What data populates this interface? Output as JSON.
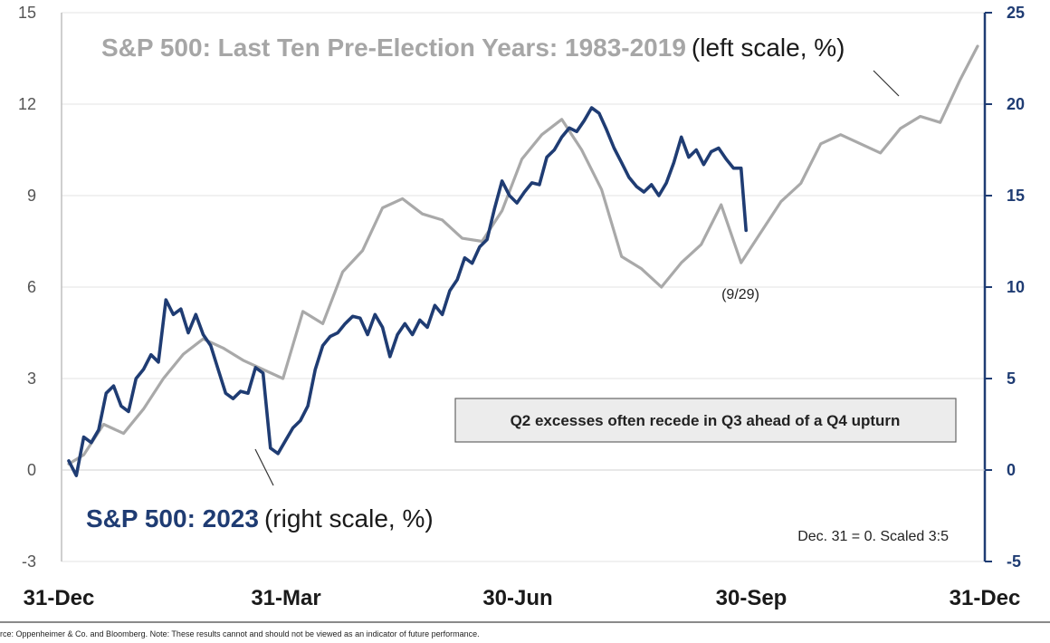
{
  "chart_data": {
    "type": "line",
    "categories": [
      "31-Dec",
      "31-Mar",
      "30-Jun",
      "30-Sep",
      "31-Dec"
    ],
    "x_range": [
      0,
      365
    ],
    "y_left": {
      "ticks": [
        "15",
        "12",
        "9",
        "6",
        "3",
        "0",
        "-3"
      ],
      "range": [
        -3,
        15
      ],
      "unit": "%"
    },
    "y_right": {
      "ticks": [
        "25",
        "20",
        "15",
        "10",
        "5",
        "0",
        "-5"
      ],
      "range": [
        -5,
        25
      ],
      "unit": "%"
    },
    "series": [
      {
        "name": "S&P 500: Last Ten Pre-Election Years: 1983-2019",
        "color": "#a9a9a9",
        "axis": "left",
        "x": [
          0,
          6,
          14,
          22,
          30,
          38,
          46,
          54,
          62,
          70,
          78,
          86,
          94,
          102,
          110,
          118,
          126,
          134,
          142,
          150,
          158,
          166,
          174,
          182,
          190,
          198,
          206,
          214,
          222,
          230,
          238,
          246,
          254,
          262,
          270,
          278,
          286,
          294,
          302,
          310,
          318,
          326,
          334,
          342,
          350,
          358,
          365
        ],
        "values": [
          0.2,
          0.5,
          1.5,
          1.2,
          2.0,
          3.0,
          3.8,
          4.3,
          4.0,
          3.6,
          3.3,
          3.0,
          5.2,
          4.8,
          6.5,
          7.2,
          8.6,
          8.9,
          8.4,
          8.2,
          7.6,
          7.5,
          8.5,
          10.2,
          11.0,
          11.5,
          10.5,
          9.2,
          7.0,
          6.6,
          6.0,
          6.8,
          7.4,
          8.7,
          6.8,
          7.8,
          8.8,
          9.4,
          10.7,
          11.0,
          10.7,
          10.4,
          11.2,
          11.6,
          11.4,
          12.8,
          13.9
        ]
      },
      {
        "name": "S&P 500: 2023",
        "color": "#1f3c73",
        "axis": "right",
        "x": [
          0,
          3,
          6,
          9,
          12,
          15,
          18,
          21,
          24,
          27,
          30,
          33,
          36,
          39,
          42,
          45,
          48,
          51,
          54,
          57,
          60,
          63,
          66,
          69,
          72,
          75,
          78,
          81,
          84,
          87,
          90,
          93,
          96,
          99,
          102,
          105,
          108,
          111,
          114,
          117,
          120,
          123,
          126,
          129,
          132,
          135,
          138,
          141,
          144,
          147,
          150,
          153,
          156,
          159,
          162,
          165,
          168,
          171,
          174,
          177,
          180,
          183,
          186,
          189,
          192,
          195,
          198,
          201,
          204,
          207,
          210,
          213,
          216,
          219,
          222,
          225,
          228,
          231,
          234,
          237,
          240,
          243,
          246,
          249,
          252,
          255,
          258,
          261,
          264,
          267,
          270,
          272
        ],
        "values": [
          0.5,
          -0.3,
          1.8,
          1.5,
          2.2,
          4.2,
          4.6,
          3.5,
          3.2,
          5.0,
          5.5,
          6.3,
          5.9,
          9.3,
          8.5,
          8.8,
          7.5,
          8.5,
          7.4,
          6.8,
          5.5,
          4.2,
          3.9,
          4.3,
          4.2,
          5.6,
          5.3,
          1.2,
          0.9,
          1.6,
          2.3,
          2.7,
          3.5,
          5.5,
          6.8,
          7.3,
          7.5,
          8.0,
          8.4,
          8.3,
          7.4,
          8.5,
          7.8,
          6.2,
          7.4,
          8.0,
          7.4,
          8.2,
          7.8,
          9.0,
          8.5,
          9.8,
          10.4,
          11.6,
          11.3,
          12.2,
          12.6,
          14.3,
          15.8,
          15.0,
          14.6,
          15.2,
          15.7,
          15.6,
          17.1,
          17.5,
          18.2,
          18.7,
          18.5,
          19.1,
          19.8,
          19.5,
          18.6,
          17.6,
          16.8,
          16.0,
          15.5,
          15.2,
          15.6,
          15.0,
          15.7,
          16.8,
          18.2,
          17.1,
          17.5,
          16.7,
          17.4,
          17.6,
          17.0,
          16.5,
          16.5,
          13.1
        ]
      }
    ],
    "title_gray_main": "S&P 500: Last Ten Pre-Election Years: 1983-2019",
    "title_gray_suffix": "(left scale, %)",
    "title_blue_main": "S&P 500: 2023",
    "title_blue_suffix": "(right scale, %)",
    "annotation_date": "(9/29)",
    "callout_box": "Q2 excesses often recede in Q3 ahead of a Q4 upturn",
    "note": "Dec. 31 = 0. Scaled 3:5",
    "source": "rce:  Oppenheimer & Co. and Bloomberg. Note: These results cannot and should not be viewed as an indicator of future performance."
  }
}
